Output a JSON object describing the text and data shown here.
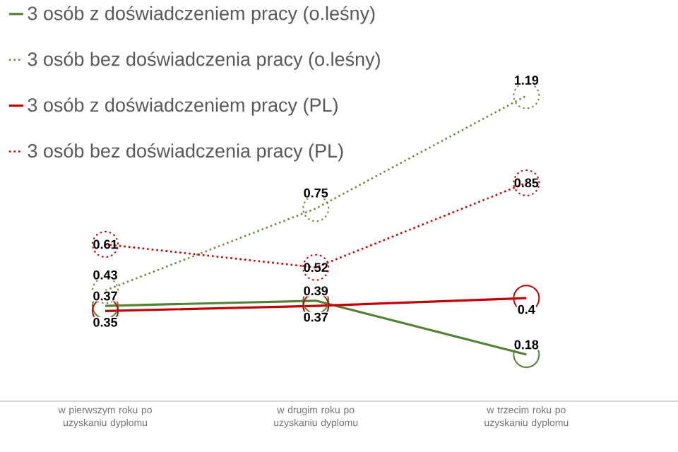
{
  "chart_data": {
    "type": "line",
    "categories": [
      "w pierwszym roku po uzyskaniu dyplomu",
      "w drugim roku po uzyskaniu dyplomu",
      "w trzecim roku po uzyskaniu dyplomu"
    ],
    "series": [
      {
        "name": "3 osób z doświadczeniem pracy (o.leśny)",
        "color": "#548235",
        "line_style": "solid",
        "values": [
          0.37,
          0.39,
          0.18
        ]
      },
      {
        "name": "3 osób bez doświadczenia pracy (o.leśny)",
        "color": "#6f8a3c",
        "line_style": "dotted",
        "values": [
          0.43,
          0.75,
          1.19
        ]
      },
      {
        "name": "3 osób z doświadczeniem pracy (PL)",
        "color": "#c00000",
        "line_style": "solid",
        "values": [
          0.35,
          0.37,
          0.4
        ]
      },
      {
        "name": "3 osób bez doświadczenia pracy (PL)",
        "color": "#c00000",
        "line_style": "dotted",
        "values": [
          0.61,
          0.52,
          0.85
        ]
      }
    ],
    "tick_labels": "x",
    "data_labels": true,
    "marker": "circle",
    "legend": "top left",
    "grid": false
  }
}
